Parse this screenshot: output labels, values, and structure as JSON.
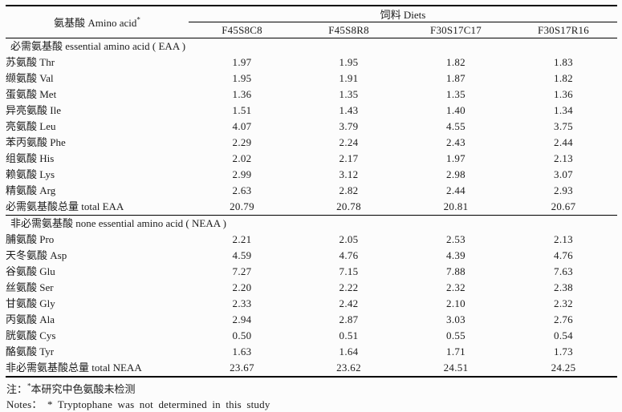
{
  "page": {
    "background": "#fcfcfc",
    "text_color": "#1c1c1c",
    "rule_color": "#000000"
  },
  "table": {
    "col1_header": "氨基酸 Amino acid",
    "col1_header_sup": "*",
    "group_header": "饲料 Diets",
    "diet_columns": [
      "F45S8C8",
      "F45S8R8",
      "F30S17C17",
      "F30S17R16"
    ],
    "sections": [
      {
        "title": "必需氨基酸 essential amino acid ( EAA )",
        "rows": [
          {
            "label": "苏氨酸 Thr",
            "values": [
              "1.97",
              "1.95",
              "1.82",
              "1.83"
            ]
          },
          {
            "label": "缬氨酸 Val",
            "values": [
              "1.95",
              "1.91",
              "1.87",
              "1.82"
            ]
          },
          {
            "label": "蛋氨酸 Met",
            "values": [
              "1.36",
              "1.35",
              "1.35",
              "1.36"
            ]
          },
          {
            "label": "异亮氨酸 Ile",
            "values": [
              "1.51",
              "1.43",
              "1.40",
              "1.34"
            ]
          },
          {
            "label": "亮氨酸 Leu",
            "values": [
              "4.07",
              "3.79",
              "4.55",
              "3.75"
            ]
          },
          {
            "label": "苯丙氨酸 Phe",
            "values": [
              "2.29",
              "2.24",
              "2.43",
              "2.44"
            ]
          },
          {
            "label": "组氨酸 His",
            "values": [
              "2.02",
              "2.17",
              "1.97",
              "2.13"
            ]
          },
          {
            "label": "赖氨酸 Lys",
            "values": [
              "2.99",
              "3.12",
              "2.98",
              "3.07"
            ]
          },
          {
            "label": "精氨酸 Arg",
            "values": [
              "2.63",
              "2.82",
              "2.44",
              "2.93"
            ]
          },
          {
            "label": "必需氨基酸总量 total EAA",
            "values": [
              "20.79",
              "20.78",
              "20.81",
              "20.67"
            ]
          }
        ]
      },
      {
        "title": "非必需氨基酸 none essential amino acid ( NEAA )",
        "rows": [
          {
            "label": "脯氨酸 Pro",
            "values": [
              "2.21",
              "2.05",
              "2.53",
              "2.13"
            ]
          },
          {
            "label": "天冬氨酸 Asp",
            "values": [
              "4.59",
              "4.76",
              "4.39",
              "4.76"
            ]
          },
          {
            "label": "谷氨酸 Glu",
            "values": [
              "7.27",
              "7.15",
              "7.88",
              "7.63"
            ]
          },
          {
            "label": "丝氨酸 Ser",
            "values": [
              "2.20",
              "2.22",
              "2.32",
              "2.38"
            ]
          },
          {
            "label": "甘氨酸 Gly",
            "values": [
              "2.33",
              "2.42",
              "2.10",
              "2.32"
            ]
          },
          {
            "label": "丙氨酸 Ala",
            "values": [
              "2.94",
              "2.87",
              "3.03",
              "2.76"
            ]
          },
          {
            "label": "胱氨酸 Cys",
            "values": [
              "0.50",
              "0.51",
              "0.55",
              "0.54"
            ]
          },
          {
            "label": "酪氨酸 Tyr",
            "values": [
              "1.63",
              "1.64",
              "1.71",
              "1.73"
            ]
          },
          {
            "label": "非必需氨基酸总量 total NEAA",
            "values": [
              "23.67",
              "23.62",
              "24.51",
              "24.25"
            ]
          }
        ]
      }
    ],
    "notes": {
      "zh_prefix": "注：",
      "zh_sup": "*",
      "zh_text": "本研究中色氨酸未检测",
      "en": "Notes： * Tryptophane was not determined in this study"
    }
  }
}
